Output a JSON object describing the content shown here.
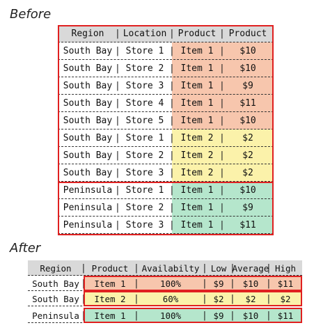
{
  "labels": {
    "before": "Before",
    "after": "After"
  },
  "before": {
    "headers": [
      "Region",
      "Location",
      "Product",
      "Product"
    ],
    "rows": [
      {
        "region": "South Bay",
        "location": "Store 1",
        "product": "Item 1",
        "price": "$10",
        "color": "pink"
      },
      {
        "region": "South Bay",
        "location": "Store 2",
        "product": "Item 1",
        "price": "$10",
        "color": "pink"
      },
      {
        "region": "South Bay",
        "location": "Store 3",
        "product": "Item 1",
        "price": "$9",
        "color": "pink"
      },
      {
        "region": "South Bay",
        "location": "Store 4",
        "product": "Item 1",
        "price": "$11",
        "color": "pink"
      },
      {
        "region": "South Bay",
        "location": "Store 5",
        "product": "Item 1",
        "price": "$10",
        "color": "pink"
      },
      {
        "region": "South Bay",
        "location": "Store 1",
        "product": "Item 2",
        "price": "$2",
        "color": "yellow"
      },
      {
        "region": "South Bay",
        "location": "Store 2",
        "product": "Item 2",
        "price": "$2",
        "color": "yellow"
      },
      {
        "region": "South Bay",
        "location": "Store 3",
        "product": "Item 2",
        "price": "$2",
        "color": "yellow"
      },
      {
        "region": "Peninsula",
        "location": "Store 1",
        "product": "Item 1",
        "price": "$10",
        "color": "green"
      },
      {
        "region": "Peninsula",
        "location": "Store 2",
        "product": "Item 1",
        "price": "$9",
        "color": "green"
      },
      {
        "region": "Peninsula",
        "location": "Store 3",
        "product": "Item 1",
        "price": "$11",
        "color": "green"
      }
    ]
  },
  "after": {
    "headers": [
      "Region",
      "Product",
      "Availabilty",
      "Low",
      "Average",
      "High"
    ],
    "rows": [
      {
        "region": "South Bay",
        "product": "Item 1",
        "availability": "100%",
        "low": "$9",
        "average": "$10",
        "high": "$11",
        "color": "pink"
      },
      {
        "region": "South Bay",
        "product": "Item 2",
        "availability": "60%",
        "low": "$2",
        "average": "$2",
        "high": "$2",
        "color": "yellow"
      },
      {
        "region": "Peninsula",
        "product": "Item 1",
        "availability": "100%",
        "low": "$9",
        "average": "$10",
        "high": "$11",
        "color": "green"
      }
    ]
  },
  "colors": {
    "pink": "#f7c6ad",
    "yellow": "#fbf2aa",
    "green": "#b5e6cc",
    "highlight": "#e02020",
    "header": "#d9d9d9"
  }
}
